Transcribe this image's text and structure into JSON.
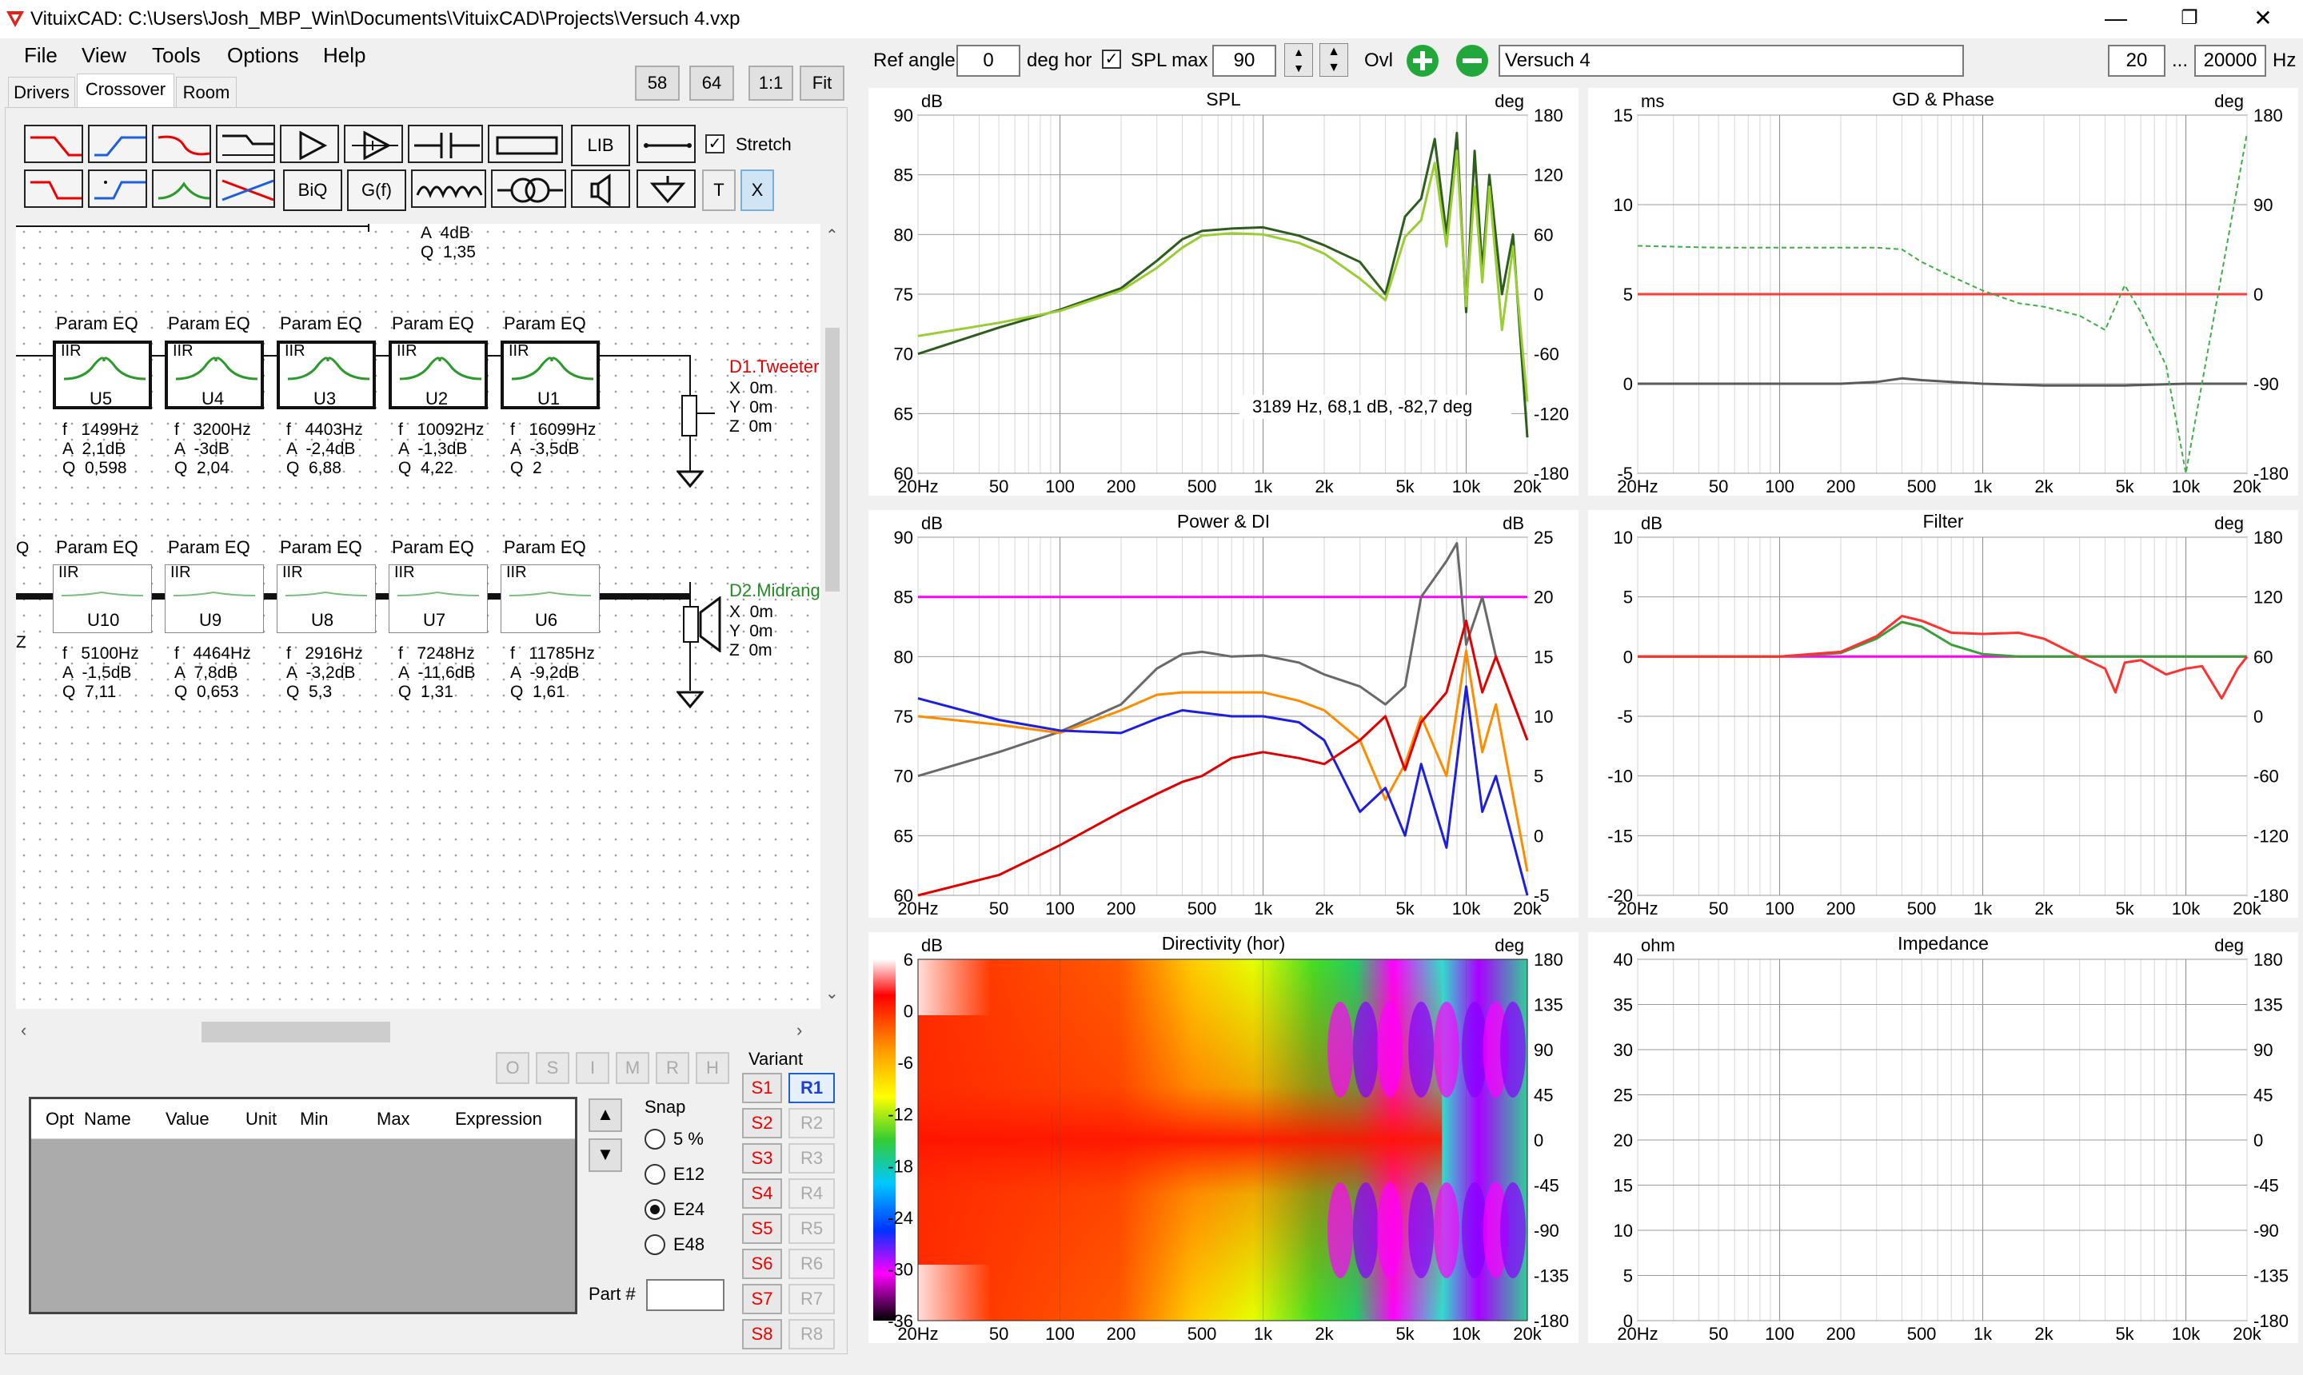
{
  "window": {
    "title": "VituixCAD: C:\\Users\\Josh_MBP_Win\\Documents\\VituixCAD\\Projects\\Versuch 4.vxp",
    "minimize": "—",
    "restore": "❐",
    "close": "✕"
  },
  "menu": [
    "File",
    "View",
    "Tools",
    "Options",
    "Help"
  ],
  "tabs": [
    "Drivers",
    "Crossover",
    "Room"
  ],
  "zoom_buttons": [
    "58",
    "64",
    "1:1",
    "Fit"
  ],
  "toolbar": {
    "lib": "LIB",
    "biq": "BiQ",
    "gf": "G(f)",
    "t": "T",
    "x": "X",
    "stretch_label": "Stretch",
    "stretch_checked": true
  },
  "top_controls": {
    "ref_angle_label": "Ref angle",
    "ref_angle_value": "0",
    "deg_hor_label": "deg hor",
    "spl_max_label": "SPL max",
    "spl_max_checked": true,
    "spl_max_value": "90",
    "ovl_label": "Ovl",
    "overlay_name": "Versuch 4",
    "freq_min": "20",
    "freq_sep": "...",
    "freq_max": "20000",
    "freq_unit": "Hz"
  },
  "schematic": {
    "top_partial": {
      "a": "A  4dB",
      "q": "Q  1,35"
    },
    "tweeter_row": [
      {
        "label": "Param EQ",
        "type": "IIR",
        "id": "U5",
        "f": "f   1499Hz",
        "a": "A  2,1dB",
        "q": "Q  0,598"
      },
      {
        "label": "Param EQ",
        "type": "IIR",
        "id": "U4",
        "f": "f   3200Hz",
        "a": "A  -3dB",
        "q": "Q  2,04"
      },
      {
        "label": "Param EQ",
        "type": "IIR",
        "id": "U3",
        "f": "f   4403Hz",
        "a": "A  -2,4dB",
        "q": "Q  6,88"
      },
      {
        "label": "Param EQ",
        "type": "IIR",
        "id": "U2",
        "f": "f   10092Hz",
        "a": "A  -1,3dB",
        "q": "Q  4,22"
      },
      {
        "label": "Param EQ",
        "type": "IIR",
        "id": "U1",
        "f": "f   16099Hz",
        "a": "A  -3,5dB",
        "q": "Q  2"
      }
    ],
    "tweeter_driver": {
      "name": "D1.Tweeter",
      "x": "X  0m",
      "y": "Y  0m",
      "z": "Z  0m"
    },
    "mid_row": [
      {
        "label": "Param EQ",
        "type": "IIR",
        "id": "U10",
        "f": "f   5100Hz",
        "a": "A  -1,5dB",
        "q": "Q  7,11"
      },
      {
        "label": "Param EQ",
        "type": "IIR",
        "id": "U9",
        "f": "f   4464Hz",
        "a": "A  7,8dB",
        "q": "Q  0,653"
      },
      {
        "label": "Param EQ",
        "type": "IIR",
        "id": "U8",
        "f": "f   2916Hz",
        "a": "A  -3,2dB",
        "q": "Q  5,3"
      },
      {
        "label": "Param EQ",
        "type": "IIR",
        "id": "U7",
        "f": "f   7248Hz",
        "a": "A  -11,6dB",
        "q": "Q  1,31"
      },
      {
        "label": "Param EQ",
        "type": "IIR",
        "id": "U6",
        "f": "f   11785Hz",
        "a": "A  -9,2dB",
        "q": "Q  1,61"
      }
    ],
    "mid_driver": {
      "name": "D2.Midrang",
      "x": "X  0m",
      "y": "Y  0m",
      "z": "Z  0m"
    },
    "left_edge": {
      "q": "Q",
      "z": "Z"
    }
  },
  "opt_buttons": [
    "O",
    "S",
    "I",
    "M",
    "R",
    "H"
  ],
  "opt_table": {
    "columns": [
      "Opt",
      "Name",
      "Value",
      "Unit",
      "Min",
      "Max",
      "Expression"
    ]
  },
  "snap": {
    "label": "Snap",
    "options": [
      "5 %",
      "E12",
      "E24",
      "E48"
    ],
    "selected": "E24"
  },
  "part_label": "Part #",
  "variant": {
    "label": "Variant",
    "s": [
      "S1",
      "S2",
      "S3",
      "S4",
      "S5",
      "S6",
      "S7",
      "S8"
    ],
    "r": [
      "R1",
      "R2",
      "R3",
      "R4",
      "R5",
      "R6",
      "R7",
      "R8"
    ],
    "active": "R1"
  },
  "colors": {
    "accent_red": "#e00000",
    "accent_blue": "#1e3fd0",
    "tweeter_green": "#228b22",
    "series_orange": "#ff8c00",
    "series_gray": "#696969"
  },
  "charts": {
    "spl": {
      "title": "SPL",
      "left_unit": "dB",
      "right_unit": "deg",
      "left_ticks": [
        "90",
        "85",
        "80",
        "75",
        "70",
        "65",
        "60"
      ],
      "right_ticks": [
        "180",
        "120",
        "60",
        "0",
        "-60",
        "-120",
        "-180"
      ],
      "x_ticks": [
        "20Hz",
        "50",
        "100",
        "200",
        "500",
        "1k",
        "2k",
        "5k",
        "10k",
        "20k"
      ],
      "cursor_readout": "3189 Hz, 68,1 dB, -82,7 deg"
    },
    "gd": {
      "title": "GD & Phase",
      "left_unit": "ms",
      "right_unit": "deg",
      "left_ticks": [
        "15",
        "10",
        "5",
        "0",
        "-5"
      ],
      "right_ticks": [
        "180",
        "90",
        "0",
        "-90",
        "-180"
      ],
      "x_ticks": [
        "20Hz",
        "50",
        "100",
        "200",
        "500",
        "1k",
        "2k",
        "5k",
        "10k",
        "20k"
      ]
    },
    "power": {
      "title": "Power & DI",
      "left_unit": "dB",
      "right_unit": "dB",
      "left_ticks": [
        "90",
        "85",
        "80",
        "75",
        "70",
        "65",
        "60"
      ],
      "right_ticks": [
        "25",
        "20",
        "15",
        "10",
        "5",
        "0",
        "-5"
      ],
      "x_ticks": [
        "20Hz",
        "50",
        "100",
        "200",
        "500",
        "1k",
        "2k",
        "5k",
        "10k",
        "20k"
      ]
    },
    "filter": {
      "title": "Filter",
      "left_unit": "dB",
      "right_unit": "deg",
      "left_ticks": [
        "10",
        "5",
        "0",
        "-5",
        "-10",
        "-15",
        "-20"
      ],
      "right_ticks": [
        "180",
        "120",
        "60",
        "0",
        "-60",
        "-120",
        "-180"
      ],
      "x_ticks": [
        "20Hz",
        "50",
        "100",
        "200",
        "500",
        "1k",
        "2k",
        "5k",
        "10k",
        "20k"
      ]
    },
    "directivity": {
      "title": "Directivity (hor)",
      "left_unit": "dB",
      "right_unit": "deg",
      "scale_ticks": [
        "6",
        "0",
        "-6",
        "-12",
        "-18",
        "-24",
        "-30",
        "-36"
      ],
      "right_ticks": [
        "180",
        "135",
        "90",
        "45",
        "0",
        "-45",
        "-90",
        "-135",
        "-180"
      ],
      "x_ticks": [
        "20Hz",
        "50",
        "100",
        "200",
        "500",
        "1k",
        "2k",
        "5k",
        "10k",
        "20k"
      ]
    },
    "impedance": {
      "title": "Impedance",
      "left_unit": "ohm",
      "right_unit": "deg",
      "left_ticks": [
        "40",
        "35",
        "30",
        "25",
        "20",
        "15",
        "10",
        "5",
        "0"
      ],
      "right_ticks": [
        "180",
        "135",
        "90",
        "45",
        "0",
        "-45",
        "-90",
        "-135",
        "-180"
      ],
      "x_ticks": [
        "20Hz",
        "50",
        "100",
        "200",
        "500",
        "1k",
        "2k",
        "5k",
        "10k",
        "20k"
      ]
    }
  },
  "chart_data": [
    {
      "type": "line",
      "title": "SPL",
      "x_scale": "log",
      "xlim": [
        20,
        20000
      ],
      "ylim": [
        60,
        90
      ],
      "series": [
        {
          "color": "#2d5e1e",
          "x": [
            20,
            50,
            100,
            200,
            300,
            400,
            500,
            700,
            1000,
            1500,
            2000,
            3000,
            4000,
            5000,
            6000,
            7000,
            8000,
            9000,
            10000,
            11000,
            12000,
            13000,
            15000,
            17000,
            20000
          ],
          "y": [
            70,
            72.2,
            73.7,
            75.5,
            77.8,
            79.6,
            80.3,
            80.5,
            80.6,
            79.9,
            79.1,
            77.7,
            75,
            81.5,
            83,
            88,
            80,
            88.5,
            73.5,
            87,
            77,
            85,
            75,
            80,
            63
          ]
        },
        {
          "color": "#9acd32",
          "x": [
            20,
            50,
            100,
            200,
            300,
            400,
            500,
            700,
            1000,
            1500,
            2000,
            3000,
            4000,
            5000,
            6000,
            7000,
            8000,
            9000,
            10000,
            11000,
            12000,
            13000,
            15000,
            17000,
            20000
          ],
          "y": [
            71.5,
            72.6,
            73.6,
            75.3,
            77.2,
            78.9,
            79.9,
            80.1,
            80,
            79.3,
            78.4,
            76.3,
            74.5,
            79.8,
            81.2,
            86,
            79,
            87,
            74,
            84,
            76,
            84,
            72,
            79,
            66
          ]
        }
      ]
    },
    {
      "type": "line",
      "title": "GD & Phase",
      "x_scale": "log",
      "xlim": [
        20,
        20000
      ],
      "ylim": [
        -5,
        15
      ],
      "series": [
        {
          "color": "#ff3b3b",
          "x": [
            20,
            20000
          ],
          "y": [
            5,
            5
          ]
        },
        {
          "color": "#5a5a5a",
          "x": [
            20,
            200,
            300,
            400,
            500,
            700,
            1000,
            2000,
            5000,
            10000,
            20000
          ],
          "y": [
            0,
            0,
            0.1,
            0.3,
            0.2,
            0.1,
            0,
            -0.1,
            -0.1,
            0,
            0
          ]
        },
        {
          "color": "#3cb043",
          "dashed": true,
          "x": [
            20,
            50,
            100,
            200,
            300,
            400,
            500,
            700,
            1000,
            1500,
            2000,
            3000,
            4000,
            5000,
            6000,
            8000,
            10000,
            20000
          ],
          "y": [
            7.7,
            7.6,
            7.6,
            7.6,
            7.6,
            7.5,
            6.8,
            6,
            5.2,
            4.5,
            4.3,
            3.8,
            3,
            5.5,
            4,
            1,
            -5,
            14
          ]
        }
      ]
    },
    {
      "type": "line",
      "title": "Power & DI",
      "x_scale": "log",
      "xlim": [
        20,
        20000
      ],
      "ylim": [
        60,
        90
      ],
      "series": [
        {
          "color": "#ff00ff",
          "x": [
            20,
            20000
          ],
          "y": [
            85,
            85
          ]
        },
        {
          "color": "#696969",
          "x": [
            20,
            50,
            100,
            200,
            300,
            400,
            500,
            700,
            1000,
            1500,
            2000,
            3000,
            4000,
            5000,
            6000,
            8000,
            9000,
            10000,
            12000,
            14000,
            20000
          ],
          "y": [
            70,
            72,
            73.7,
            76,
            79,
            80.2,
            80.4,
            80,
            80.1,
            79.5,
            78.5,
            77.5,
            76,
            77.5,
            85,
            88,
            89.5,
            81,
            85,
            80,
            73
          ]
        },
        {
          "color": "#ff8c00",
          "x": [
            20,
            50,
            100,
            200,
            300,
            400,
            500,
            700,
            1000,
            1500,
            2000,
            3000,
            4000,
            5000,
            6000,
            8000,
            10000,
            12000,
            14000,
            20000
          ],
          "y": [
            75,
            74.3,
            73.6,
            75.5,
            76.8,
            77,
            77,
            77,
            77,
            76.3,
            75.5,
            73,
            68,
            71,
            75,
            70,
            80.5,
            72,
            76,
            62
          ]
        },
        {
          "color": "#1e1ee0",
          "x": [
            20,
            50,
            100,
            200,
            300,
            400,
            500,
            700,
            1000,
            1500,
            2000,
            3000,
            4000,
            5000,
            6000,
            8000,
            10000,
            12000,
            14000,
            20000
          ],
          "y": [
            76.5,
            74.7,
            73.8,
            73.6,
            74.8,
            75.5,
            75.3,
            75,
            75,
            74.5,
            73,
            67,
            69,
            65,
            71,
            64,
            77.5,
            67,
            70,
            60
          ]
        },
        {
          "color": "#e00000",
          "x": [
            20,
            50,
            100,
            200,
            300,
            400,
            500,
            700,
            1000,
            1500,
            2000,
            3000,
            4000,
            5000,
            6000,
            8000,
            10000,
            12000,
            14000,
            20000
          ],
          "y": [
            60,
            61.7,
            64.2,
            67,
            68.5,
            69.5,
            70,
            71.5,
            72,
            71.5,
            71,
            73,
            75,
            70.5,
            74.5,
            77,
            83,
            77,
            80,
            73
          ]
        }
      ]
    },
    {
      "type": "line",
      "title": "Filter",
      "x_scale": "log",
      "xlim": [
        20,
        20000
      ],
      "ylim": [
        -20,
        10
      ],
      "series": [
        {
          "color": "#e8e830",
          "x": [
            20,
            20000
          ],
          "y": [
            0,
            0
          ]
        },
        {
          "color": "#ff00ff",
          "x": [
            20,
            20000
          ],
          "y": [
            0,
            0
          ]
        },
        {
          "color": "#3b9e3b",
          "x": [
            20,
            100,
            200,
            300,
            400,
            500,
            700,
            1000,
            1500,
            2000,
            20000
          ],
          "y": [
            0,
            0,
            0.3,
            1.5,
            2.9,
            2.5,
            1,
            0.2,
            0,
            0,
            0
          ]
        },
        {
          "color": "#ff3030",
          "x": [
            20,
            100,
            200,
            300,
            400,
            500,
            700,
            1000,
            1500,
            2000,
            3000,
            4000,
            4500,
            5000,
            6000,
            8000,
            10000,
            12000,
            15000,
            18000,
            20000
          ],
          "y": [
            0,
            0,
            0.4,
            1.7,
            3.4,
            3,
            2,
            1.9,
            2,
            1.5,
            0,
            -1,
            -3,
            -0.5,
            -0.3,
            -1.5,
            -1,
            -0.8,
            -3.5,
            -1,
            0
          ]
        }
      ]
    },
    {
      "type": "heatmap",
      "title": "Directivity (hor)",
      "x_scale": "log",
      "xlim": [
        20,
        20000
      ],
      "ylim": [
        -180,
        180
      ],
      "zlim": [
        -36,
        6
      ]
    },
    {
      "type": "line",
      "title": "Impedance",
      "x_scale": "log",
      "xlim": [
        20,
        20000
      ],
      "ylim": [
        0,
        40
      ],
      "series": []
    }
  ]
}
